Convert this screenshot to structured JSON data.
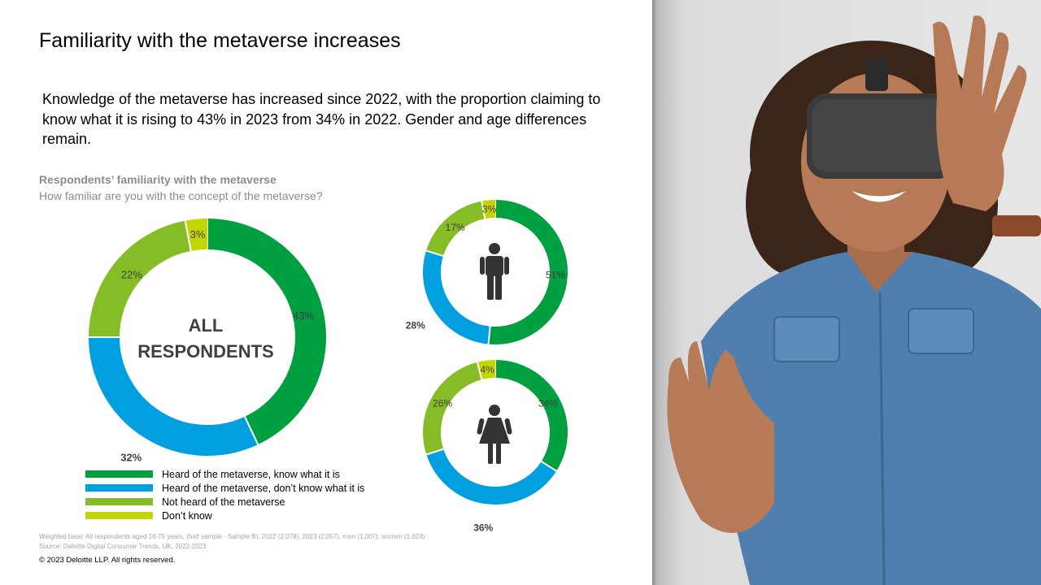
{
  "title": "Familiarity with the metaverse increases",
  "lead": "Knowledge of the metaverse has increased since 2022, with the proportion claiming to  know what it is rising to 43% in 2023 from 34% in 2022. Gender and age differences remain.",
  "chart_header": {
    "title": "Respondents’ familiarity with the metaverse",
    "subtitle": "How familiar are you with the concept of the metaverse?"
  },
  "center_label": {
    "line1": "ALL",
    "line2": "RESPONDENTS"
  },
  "colors": {
    "know": "#00a040",
    "dont_know": "#00a0e0",
    "not_heard": "#86bc25",
    "dont_know_answer": "#c4d600"
  },
  "icons": {
    "men": "man-icon",
    "women": "woman-icon"
  },
  "chart_data": [
    {
      "type": "pie",
      "variant": "donut",
      "name": "All respondents",
      "categories": [
        "Heard of the metaverse, know what it is",
        "Heard of the metaverse, don’t know what it is",
        "Not heard of the metaverse",
        "Don’t know"
      ],
      "values": [
        43,
        32,
        22,
        3
      ],
      "labels": [
        "43%",
        "32%",
        "22%",
        "3%"
      ]
    },
    {
      "type": "pie",
      "variant": "donut",
      "name": "Men",
      "categories": [
        "Heard of the metaverse, know what it is",
        "Heard of the metaverse, don’t know what it is",
        "Not heard of the metaverse",
        "Don’t know"
      ],
      "values": [
        51,
        28,
        17,
        3
      ],
      "labels": [
        "51%",
        "28%",
        "17%",
        "3%"
      ]
    },
    {
      "type": "pie",
      "variant": "donut",
      "name": "Women",
      "categories": [
        "Heard of the metaverse, know what it is",
        "Heard of the metaverse, don’t know what it is",
        "Not heard of the metaverse",
        "Don’t know"
      ],
      "values": [
        34,
        36,
        26,
        4
      ],
      "labels": [
        "34%",
        "36%",
        "26%",
        "4%"
      ]
    }
  ],
  "legend": [
    {
      "label": "Heard of the metaverse, know what it is",
      "color": "#00a040"
    },
    {
      "label": "Heard of the metaverse, don’t know what it is",
      "color": "#00a0e0"
    },
    {
      "label": "Not heard of the metaverse",
      "color": "#86bc25"
    },
    {
      "label": "Don’t know",
      "color": "#c4d600"
    }
  ],
  "footnotes": {
    "base": "Weighted base: All respondents aged 16-75 years, (half sample - Sample B), 2022 (2,078), 2023 (2,057), men (1,007), women (1,024)",
    "source": "Source: Deloitte Digital Consumer Trends, UK, 2022-2023",
    "copyright": "© 2023 Deloitte LLP. All rights reserved."
  }
}
